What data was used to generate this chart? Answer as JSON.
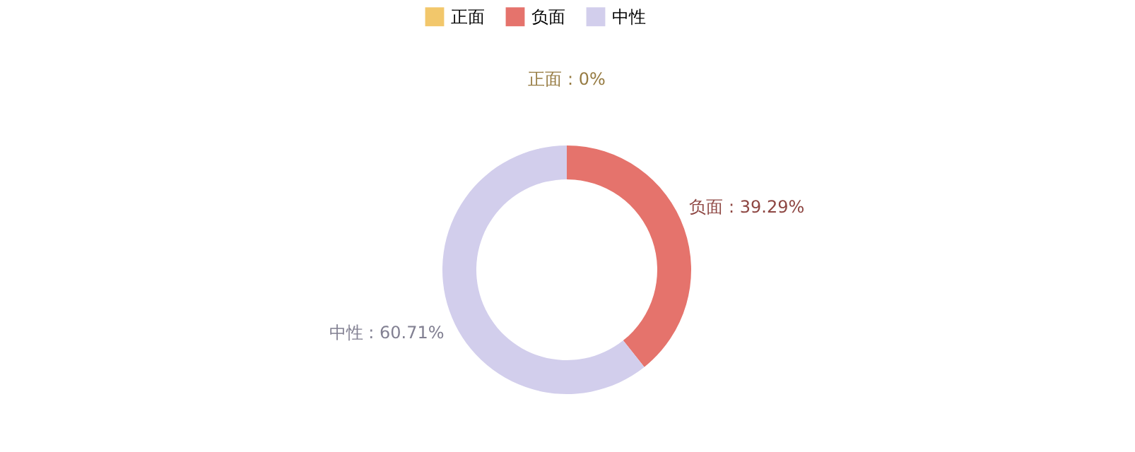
{
  "chart_data": {
    "type": "donut",
    "categories": [
      "正面",
      "负面",
      "中性"
    ],
    "values": [
      0,
      39.29,
      60.71
    ],
    "value_labels": [
      "正面 : 0%",
      "负面 : 39.29%",
      "中性 : 60.71%"
    ],
    "colors": [
      "#f2c76b",
      "#e5736c",
      "#d2ceec"
    ],
    "legend": "top"
  }
}
